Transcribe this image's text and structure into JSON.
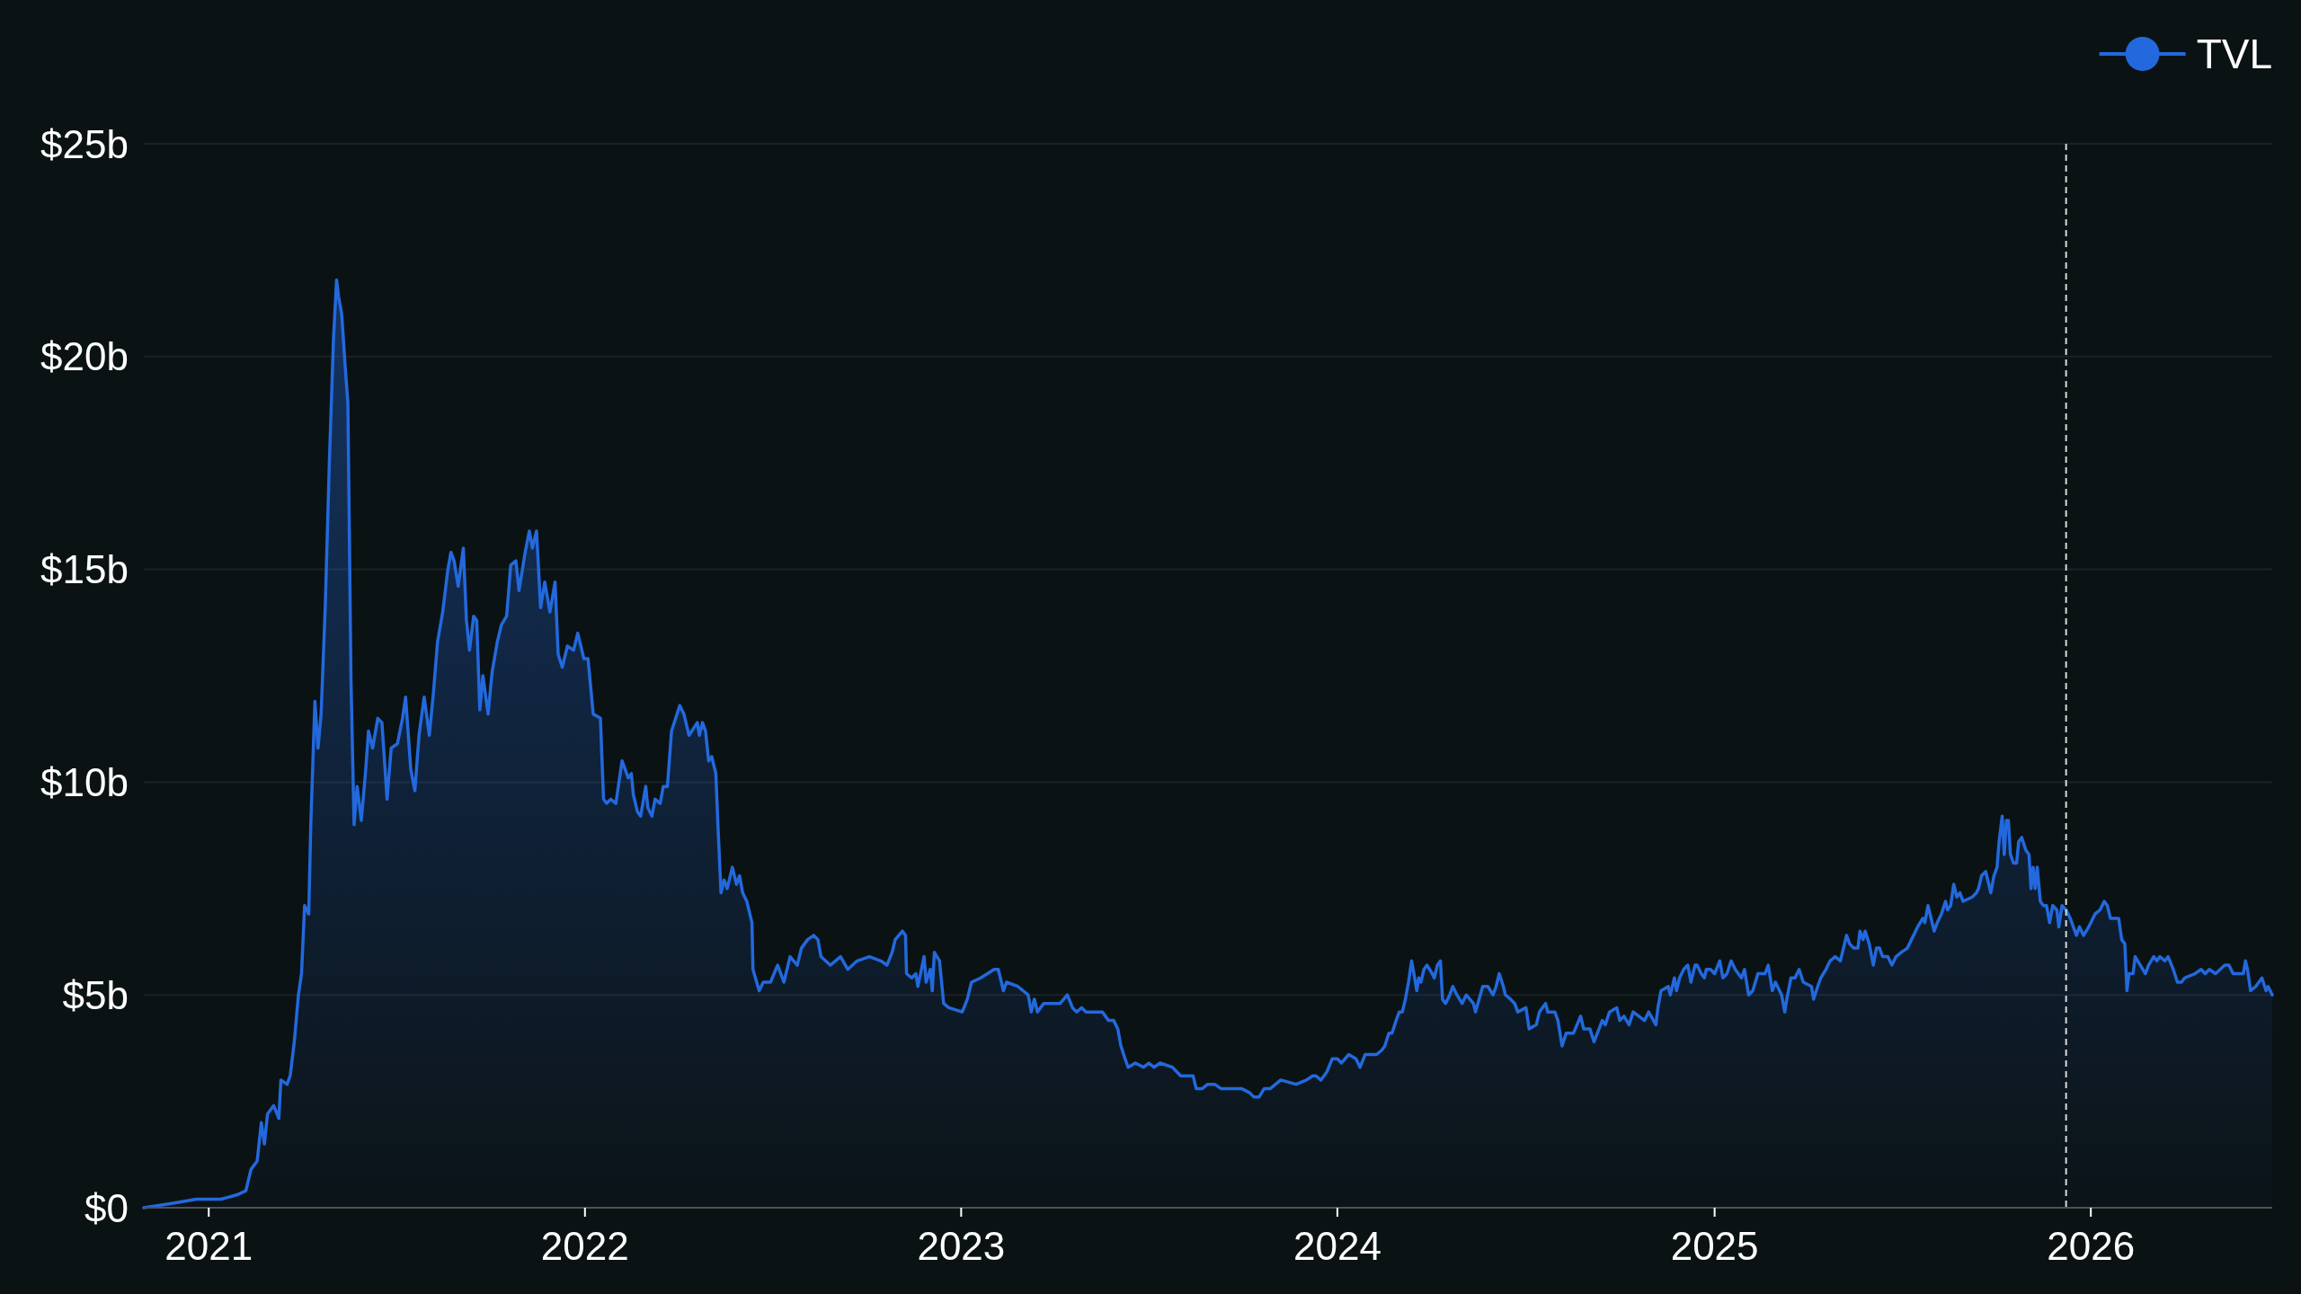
{
  "chart_data": {
    "type": "area",
    "legend": "top right",
    "grid": "y",
    "xlim": [
      "2020-10-30",
      "2026-06-26"
    ],
    "xticks": [
      "2021",
      "2022",
      "2023",
      "2024",
      "2025",
      "2026"
    ],
    "ylim": [
      0,
      25
    ],
    "yticks": [
      {
        "value": 0,
        "label": "$0"
      },
      {
        "value": 5,
        "label": "$5b"
      },
      {
        "value": 10,
        "label": "$10b"
      },
      {
        "value": 15,
        "label": "$15b"
      },
      {
        "value": 20,
        "label": "$20b"
      },
      {
        "value": 25,
        "label": "$25b"
      }
    ],
    "ref_lines": [
      {
        "axis": "x",
        "value": "2025-12-08",
        "color": "#d9d9d9",
        "line_style": "dashed"
      }
    ],
    "x": [
      "2020-10-30",
      "2020-11-26",
      "2020-12-20",
      "2021-01-13",
      "2021-01-28",
      "2021-02-06",
      "2021-02-11",
      "2021-02-17",
      "2021-02-21",
      "2021-02-24",
      "2021-02-27",
      "2021-03-05",
      "2021-03-10",
      "2021-03-12",
      "2021-03-18",
      "2021-03-21",
      "2021-03-25",
      "2021-03-29",
      "2021-04-01",
      "2021-04-04",
      "2021-04-08",
      "2021-04-10",
      "2021-04-14",
      "2021-04-17",
      "2021-04-20",
      "2021-04-24",
      "2021-04-28",
      "2021-05-02",
      "2021-05-05",
      "2021-05-07",
      "2021-05-10",
      "2021-05-13",
      "2021-05-16",
      "2021-05-19",
      "2021-05-22",
      "2021-05-25",
      "2021-05-29",
      "2021-06-02",
      "2021-06-05",
      "2021-06-09",
      "2021-06-14",
      "2021-06-18",
      "2021-06-23",
      "2021-06-27",
      "2021-07-03",
      "2021-07-08",
      "2021-07-11",
      "2021-07-16",
      "2021-07-20",
      "2021-07-24",
      "2021-07-29",
      "2021-08-03",
      "2021-08-07",
      "2021-08-11",
      "2021-08-16",
      "2021-08-21",
      "2021-08-24",
      "2021-08-27",
      "2021-08-31",
      "2021-09-05",
      "2021-09-08",
      "2021-09-11",
      "2021-09-15",
      "2021-09-18",
      "2021-09-21",
      "2021-09-24",
      "2021-09-29",
      "2021-10-03",
      "2021-10-08",
      "2021-10-12",
      "2021-10-17",
      "2021-10-21",
      "2021-10-26",
      "2021-10-29",
      "2021-11-04",
      "2021-11-08",
      "2021-11-11",
      "2021-11-15",
      "2021-11-19",
      "2021-11-23",
      "2021-11-28",
      "2021-12-03",
      "2021-12-06",
      "2021-12-10",
      "2021-12-15",
      "2021-12-21",
      "2021-12-25",
      "2021-12-31",
      "2022-01-04",
      "2022-01-09",
      "2022-01-16",
      "2022-01-19",
      "2022-01-22",
      "2022-01-26",
      "2022-01-31",
      "2022-02-06",
      "2022-02-12",
      "2022-02-15",
      "2022-02-17",
      "2022-02-21",
      "2022-02-24",
      "2022-03-01",
      "2022-03-03",
      "2022-03-07",
      "2022-03-10",
      "2022-03-15",
      "2022-03-18",
      "2022-03-22",
      "2022-03-26",
      "2022-03-30",
      "2022-04-03",
      "2022-04-07",
      "2022-04-12",
      "2022-04-20",
      "2022-04-22",
      "2022-04-25",
      "2022-04-28",
      "2022-05-01",
      "2022-05-04",
      "2022-05-08",
      "2022-05-10",
      "2022-05-13",
      "2022-05-16",
      "2022-05-19",
      "2022-05-24",
      "2022-05-28",
      "2022-05-31",
      "2022-06-03",
      "2022-06-07",
      "2022-06-12",
      "2022-06-13",
      "2022-06-19",
      "2022-06-23",
      "2022-06-30",
      "2022-07-07",
      "2022-07-13",
      "2022-07-19",
      "2022-07-26",
      "2022-07-30",
      "2022-08-05",
      "2022-08-11",
      "2022-08-15",
      "2022-08-18",
      "2022-08-27",
      "2022-09-06",
      "2022-09-13",
      "2022-09-22",
      "2022-10-04",
      "2022-10-15",
      "2022-10-21",
      "2022-10-26",
      "2022-10-29",
      "2022-11-05",
      "2022-11-08",
      "2022-11-09",
      "2022-11-14",
      "2022-11-18",
      "2022-11-20",
      "2022-11-26",
      "2022-11-28",
      "2022-12-02",
      "2022-12-04",
      "2022-12-06",
      "2022-12-11",
      "2022-12-15",
      "2022-12-20",
      "2023-01-02",
      "2023-01-07",
      "2023-01-11",
      "2023-01-20",
      "2023-02-02",
      "2023-02-06",
      "2023-02-11",
      "2023-02-14",
      "2023-02-25",
      "2023-03-07",
      "2023-03-10",
      "2023-03-13",
      "2023-03-16",
      "2023-03-22",
      "2023-04-07",
      "2023-04-14",
      "2023-04-19",
      "2023-04-23",
      "2023-04-28",
      "2023-05-02",
      "2023-05-09",
      "2023-05-18",
      "2023-05-24",
      "2023-05-29",
      "2023-06-02",
      "2023-06-05",
      "2023-06-09",
      "2023-06-12",
      "2023-06-19",
      "2023-06-27",
      "2023-07-02",
      "2023-07-07",
      "2023-07-13",
      "2023-07-25",
      "2023-08-02",
      "2023-08-14",
      "2023-08-17",
      "2023-08-23",
      "2023-08-28",
      "2023-09-04",
      "2023-09-10",
      "2023-09-20",
      "2023-09-30",
      "2023-10-08",
      "2023-10-12",
      "2023-10-17",
      "2023-10-22",
      "2023-10-28",
      "2023-11-07",
      "2023-11-22",
      "2023-12-02",
      "2023-12-08",
      "2023-12-11",
      "2023-12-16",
      "2023-12-22",
      "2023-12-27",
      "2024-01-01",
      "2024-01-05",
      "2024-01-12",
      "2024-01-19",
      "2024-01-23",
      "2024-01-28",
      "2024-02-08",
      "2024-02-13",
      "2024-02-16",
      "2024-02-20",
      "2024-02-23",
      "2024-02-27",
      "2024-03-01",
      "2024-03-04",
      "2024-03-07",
      "2024-03-10",
      "2024-03-13",
      "2024-03-16",
      "2024-03-18",
      "2024-03-20",
      "2024-03-22",
      "2024-03-25",
      "2024-03-28",
      "2024-04-02",
      "2024-04-04",
      "2024-04-07",
      "2024-04-10",
      "2024-04-12",
      "2024-04-15",
      "2024-04-19",
      "2024-04-22",
      "2024-04-26",
      "2024-05-01",
      "2024-05-05",
      "2024-05-12",
      "2024-05-14",
      "2024-05-21",
      "2024-05-26",
      "2024-05-31",
      "2024-06-03",
      "2024-06-06",
      "2024-06-10",
      "2024-06-12",
      "2024-06-17",
      "2024-06-21",
      "2024-06-24",
      "2024-07-02",
      "2024-07-05",
      "2024-07-12",
      "2024-07-15",
      "2024-07-21",
      "2024-07-23",
      "2024-07-30",
      "2024-08-02",
      "2024-08-06",
      "2024-08-10",
      "2024-08-17",
      "2024-08-24",
      "2024-08-27",
      "2024-09-02",
      "2024-09-06",
      "2024-09-14",
      "2024-09-17",
      "2024-09-21",
      "2024-09-28",
      "2024-10-01",
      "2024-10-05",
      "2024-10-10",
      "2024-10-14",
      "2024-10-25",
      "2024-10-29",
      "2024-11-05",
      "2024-11-07",
      "2024-11-10",
      "2024-11-17",
      "2024-11-19",
      "2024-11-23",
      "2024-11-25",
      "2024-11-28",
      "2024-12-02",
      "2024-12-06",
      "2024-12-09",
      "2024-12-13",
      "2024-12-15",
      "2024-12-19",
      "2024-12-22",
      "2024-12-24",
      "2024-12-28",
      "2025-01-01",
      "2025-01-06",
      "2025-01-09",
      "2025-01-13",
      "2025-01-17",
      "2025-01-21",
      "2025-01-27",
      "2025-01-30",
      "2025-02-03",
      "2025-02-07",
      "2025-02-12",
      "2025-02-19",
      "2025-02-22",
      "2025-02-26",
      "2025-03-01",
      "2025-03-05",
      "2025-03-07",
      "2025-03-10",
      "2025-03-12",
      "2025-03-16",
      "2025-03-20",
      "2025-03-24",
      "2025-03-28",
      "2025-04-05",
      "2025-04-07",
      "2025-04-11",
      "2025-04-14",
      "2025-04-19",
      "2025-04-23",
      "2025-04-28",
      "2025-05-03",
      "2025-05-06",
      "2025-05-09",
      "2025-05-12",
      "2025-05-16",
      "2025-05-20",
      "2025-05-22",
      "2025-05-25",
      "2025-05-27",
      "2025-05-31",
      "2025-06-04",
      "2025-06-07",
      "2025-06-10",
      "2025-06-13",
      "2025-06-18",
      "2025-06-22",
      "2025-06-26",
      "2025-07-01",
      "2025-07-07",
      "2025-07-11",
      "2025-07-17",
      "2025-07-22",
      "2025-07-24",
      "2025-07-27",
      "2025-07-30",
      "2025-08-02",
      "2025-08-05",
      "2025-08-09",
      "2025-08-13",
      "2025-08-15",
      "2025-08-18",
      "2025-08-21",
      "2025-08-24",
      "2025-08-27",
      "2025-08-30",
      "2025-09-08",
      "2025-09-12",
      "2025-09-14",
      "2025-09-17",
      "2025-09-21",
      "2025-09-23",
      "2025-09-26",
      "2025-09-29",
      "2025-10-02",
      "2025-10-04",
      "2025-10-07",
      "2025-10-09",
      "2025-10-11",
      "2025-10-13",
      "2025-10-15",
      "2025-10-18",
      "2025-10-21",
      "2025-10-23",
      "2025-10-26",
      "2025-10-30",
      "2025-11-02",
      "2025-11-04",
      "2025-11-06",
      "2025-11-08",
      "2025-11-10",
      "2025-11-13",
      "2025-11-16",
      "2025-11-19",
      "2025-11-22",
      "2025-11-25",
      "2025-11-29",
      "2025-12-01",
      "2025-12-04",
      "2025-12-08",
      "2025-12-12",
      "2025-12-18",
      "2025-12-21",
      "2025-12-25",
      "2025-12-30",
      "2026-01-05",
      "2026-01-10",
      "2026-01-14",
      "2026-01-17",
      "2026-01-20",
      "2026-01-28",
      "2026-01-31",
      "2026-02-03",
      "2026-02-05",
      "2026-02-07",
      "2026-02-11",
      "2026-02-13",
      "2026-02-18",
      "2026-02-23",
      "2026-02-26",
      "2026-03-03",
      "2026-03-06",
      "2026-03-09",
      "2026-03-14",
      "2026-03-17",
      "2026-03-22",
      "2026-03-26",
      "2026-03-30",
      "2026-04-02",
      "2026-04-12",
      "2026-04-18",
      "2026-04-22",
      "2026-04-26",
      "2026-05-02",
      "2026-05-11",
      "2026-05-15",
      "2026-05-19",
      "2026-05-29",
      "2026-05-31",
      "2026-06-02",
      "2026-06-05",
      "2026-06-10",
      "2026-06-16",
      "2026-06-20",
      "2026-06-22",
      "2026-06-26"
    ],
    "series": [
      {
        "name": "TVL",
        "color": "#2369dd",
        "values": [
          0.0,
          0.1,
          0.2,
          0.2,
          0.3,
          0.4,
          0.9,
          1.1,
          2.0,
          1.5,
          2.2,
          2.4,
          2.1,
          3.0,
          2.9,
          3.1,
          3.9,
          5.0,
          5.5,
          7.1,
          6.9,
          9.0,
          11.9,
          10.8,
          11.6,
          14.1,
          17.5,
          20.4,
          21.8,
          21.4,
          21.0,
          19.9,
          18.9,
          12.4,
          9.0,
          9.9,
          9.1,
          10.2,
          11.2,
          10.8,
          11.5,
          11.4,
          9.6,
          10.8,
          10.9,
          11.5,
          12.0,
          10.3,
          9.8,
          11.1,
          12.0,
          11.1,
          12.1,
          13.3,
          14.0,
          15.0,
          15.4,
          15.2,
          14.6,
          15.5,
          13.8,
          13.1,
          13.9,
          13.8,
          11.7,
          12.5,
          11.6,
          12.6,
          13.3,
          13.7,
          13.9,
          15.1,
          15.2,
          14.5,
          15.4,
          15.9,
          15.5,
          15.9,
          14.1,
          14.7,
          14.0,
          14.7,
          13.0,
          12.7,
          13.2,
          13.1,
          13.5,
          12.9,
          12.9,
          11.6,
          11.5,
          9.6,
          9.5,
          9.6,
          9.5,
          10.5,
          10.1,
          10.2,
          9.7,
          9.3,
          9.2,
          9.9,
          9.4,
          9.2,
          9.6,
          9.5,
          9.9,
          9.9,
          11.2,
          11.5,
          11.8,
          11.6,
          11.1,
          11.4,
          11.1,
          11.4,
          11.2,
          10.5,
          10.6,
          10.2,
          9.0,
          7.4,
          7.7,
          7.5,
          8.0,
          7.6,
          7.8,
          7.4,
          7.2,
          6.7,
          5.6,
          5.1,
          5.3,
          5.3,
          5.7,
          5.3,
          5.9,
          5.7,
          6.1,
          6.3,
          6.4,
          6.3,
          5.9,
          5.7,
          5.9,
          5.6,
          5.8,
          5.9,
          5.8,
          5.7,
          6.0,
          6.3,
          6.5,
          6.4,
          5.5,
          5.4,
          5.5,
          5.2,
          5.9,
          5.3,
          5.6,
          5.1,
          6.0,
          5.8,
          4.8,
          4.7,
          4.6,
          4.9,
          5.3,
          5.4,
          5.6,
          5.6,
          5.1,
          5.3,
          5.2,
          5.0,
          4.6,
          4.9,
          4.6,
          4.8,
          4.8,
          5.0,
          4.7,
          4.6,
          4.7,
          4.6,
          4.6,
          4.6,
          4.4,
          4.4,
          4.2,
          3.8,
          3.5,
          3.3,
          3.4,
          3.3,
          3.4,
          3.3,
          3.4,
          3.3,
          3.1,
          3.1,
          2.8,
          2.8,
          2.9,
          2.9,
          2.8,
          2.8,
          2.8,
          2.7,
          2.6,
          2.6,
          2.8,
          2.8,
          3.0,
          2.9,
          3.0,
          3.1,
          3.1,
          3.0,
          3.2,
          3.5,
          3.5,
          3.4,
          3.6,
          3.5,
          3.3,
          3.6,
          3.6,
          3.7,
          3.8,
          4.1,
          4.1,
          4.4,
          4.6,
          4.6,
          4.9,
          5.3,
          5.8,
          5.4,
          5.1,
          5.4,
          5.3,
          5.6,
          5.7,
          5.5,
          5.4,
          5.7,
          5.8,
          4.9,
          4.8,
          5.0,
          5.2,
          5.0,
          4.8,
          5.0,
          4.8,
          4.6,
          5.2,
          5.2,
          5.0,
          5.2,
          5.5,
          5.2,
          5.0,
          4.9,
          4.8,
          4.6,
          4.7,
          4.2,
          4.3,
          4.6,
          4.8,
          4.6,
          4.6,
          4.4,
          3.8,
          4.1,
          4.1,
          4.5,
          4.2,
          4.2,
          3.9,
          4.4,
          4.3,
          4.6,
          4.7,
          4.4,
          4.5,
          4.3,
          4.6,
          4.4,
          4.6,
          4.3,
          4.7,
          5.1,
          5.2,
          5.0,
          5.4,
          5.1,
          5.4,
          5.6,
          5.7,
          5.3,
          5.7,
          5.7,
          5.5,
          5.4,
          5.6,
          5.6,
          5.5,
          5.8,
          5.4,
          5.5,
          5.8,
          5.6,
          5.4,
          5.6,
          5.0,
          5.1,
          5.5,
          5.5,
          5.7,
          5.1,
          5.3,
          5.1,
          5.0,
          4.6,
          4.9,
          5.4,
          5.4,
          5.6,
          5.3,
          5.2,
          4.9,
          5.2,
          5.4,
          5.6,
          5.8,
          5.9,
          5.8,
          6.1,
          6.4,
          6.2,
          6.1,
          6.1,
          6.5,
          6.3,
          6.5,
          6.2,
          5.7,
          6.1,
          6.1,
          5.9,
          5.9,
          5.7,
          5.9,
          6.0,
          6.1,
          6.3,
          6.6,
          6.8,
          6.7,
          7.1,
          6.8,
          6.5,
          6.7,
          6.9,
          7.2,
          7.0,
          7.1,
          7.6,
          7.3,
          7.4,
          7.2,
          7.3,
          7.4,
          7.5,
          7.8,
          7.9,
          7.7,
          7.4,
          7.8,
          8.0,
          8.6,
          9.2,
          8.3,
          9.1,
          9.1,
          8.3,
          8.1,
          8.1,
          8.6,
          8.7,
          8.4,
          8.3,
          7.5,
          8.0,
          7.5,
          8.0,
          7.2,
          7.1,
          7.1,
          6.7,
          7.1,
          7.0,
          6.6,
          7.1,
          7.0,
          6.8,
          6.4,
          6.6,
          6.4,
          6.6,
          6.9,
          7.0,
          7.2,
          7.1,
          6.8,
          6.8,
          6.3,
          6.2,
          5.1,
          5.5,
          5.5,
          5.9,
          5.7,
          5.5,
          5.7,
          5.9,
          5.8,
          5.9,
          5.8,
          5.9,
          5.6,
          5.3,
          5.3,
          5.4,
          5.5,
          5.6,
          5.5,
          5.6,
          5.5,
          5.7,
          5.7,
          5.5,
          5.5,
          5.8,
          5.6,
          5.1,
          5.2,
          5.4,
          5.1,
          5.2,
          5.0
        ]
      }
    ]
  }
}
